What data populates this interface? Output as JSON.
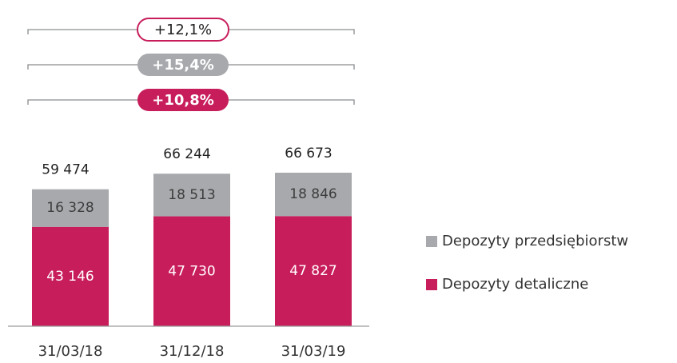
{
  "chart_data": {
    "type": "stacked_bar",
    "categories": [
      "31/03/18",
      "31/12/18",
      "31/03/19"
    ],
    "series": [
      {
        "name": "Depozyty detaliczne",
        "color": "#c81d5b",
        "values": [
          43146,
          47730,
          47827
        ],
        "value_labels": [
          "43 146",
          "47 730",
          "47 827"
        ]
      },
      {
        "name": "Depozyty przedsiębiorstw",
        "color": "#a7a9ac",
        "values": [
          16328,
          18513,
          18846
        ],
        "value_labels": [
          "16 328",
          "18 513",
          "18 846"
        ]
      }
    ],
    "totals": [
      59474,
      66244,
      66673
    ],
    "total_labels": [
      "59 474",
      "66 244",
      "66 673"
    ],
    "annotations": [
      "+12,1%",
      "+15,4%",
      "+10,8%"
    ]
  }
}
